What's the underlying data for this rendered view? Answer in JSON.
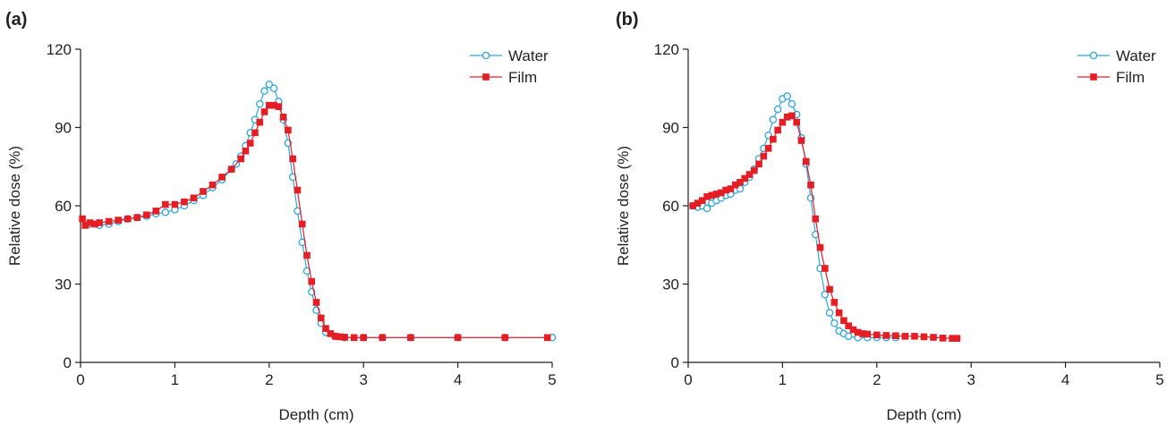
{
  "chart_data": [
    {
      "panel_label": "(a)",
      "type": "line",
      "xlabel": "Depth (cm)",
      "ylabel": "Relative dose  (%)",
      "xlim": [
        0,
        5
      ],
      "ylim": [
        0,
        120
      ],
      "xticks": [
        0,
        1,
        2,
        3,
        4,
        5
      ],
      "yticks": [
        0,
        30,
        60,
        90,
        120
      ],
      "grid": false,
      "legend": "top-right",
      "series": [
        {
          "name": "Water",
          "color": "#2aa7df",
          "marker": "open-circle",
          "x": [
            0.1,
            0.2,
            0.3,
            0.4,
            0.5,
            0.6,
            0.7,
            0.8,
            0.9,
            1.0,
            1.1,
            1.2,
            1.3,
            1.4,
            1.5,
            1.6,
            1.65,
            1.7,
            1.75,
            1.8,
            1.85,
            1.9,
            1.95,
            2.0,
            2.05,
            2.1,
            2.15,
            2.2,
            2.25,
            2.3,
            2.35,
            2.4,
            2.45,
            2.5,
            2.55,
            2.6,
            2.7,
            2.8,
            3.0,
            3.2,
            3.5,
            4.0,
            4.5,
            5.0
          ],
          "y": [
            53,
            52.5,
            53,
            54,
            55,
            55.5,
            56,
            57,
            57.5,
            58.5,
            60,
            62,
            64,
            67,
            70,
            74,
            76,
            79,
            83,
            88,
            93,
            99,
            104,
            106.5,
            105,
            100,
            93,
            84,
            71,
            58,
            46,
            35,
            27,
            20,
            15,
            11.5,
            10,
            9.5,
            9.5,
            9.5,
            9.5,
            9.5,
            9.5,
            9.5
          ]
        },
        {
          "name": "Film",
          "color": "#e31e24",
          "marker": "filled-square",
          "x": [
            0.02,
            0.05,
            0.1,
            0.15,
            0.2,
            0.3,
            0.4,
            0.5,
            0.6,
            0.7,
            0.8,
            0.9,
            1.0,
            1.1,
            1.2,
            1.3,
            1.4,
            1.5,
            1.6,
            1.7,
            1.75,
            1.8,
            1.85,
            1.9,
            1.95,
            2.0,
            2.05,
            2.1,
            2.15,
            2.2,
            2.25,
            2.3,
            2.35,
            2.4,
            2.45,
            2.5,
            2.55,
            2.6,
            2.65,
            2.7,
            2.75,
            2.8,
            2.9,
            3.0,
            3.2,
            3.5,
            4.0,
            4.5,
            4.95
          ],
          "y": [
            55,
            52.5,
            53.5,
            53,
            53.5,
            54,
            54.5,
            55,
            55.5,
            56.5,
            58,
            60.5,
            60.5,
            61.5,
            63,
            65.5,
            68,
            71,
            74,
            78,
            81,
            84,
            88,
            92,
            96,
            98.5,
            98.5,
            98,
            94,
            89,
            78,
            66,
            53,
            41,
            31,
            23,
            17,
            13,
            11,
            10,
            9.8,
            9.6,
            9.5,
            9.5,
            9.5,
            9.5,
            9.5,
            9.5,
            9.5
          ]
        }
      ]
    },
    {
      "panel_label": "(b)",
      "type": "line",
      "xlabel": "Depth (cm)",
      "ylabel": "Relative dose  (%)",
      "xlim": [
        0,
        5
      ],
      "ylim": [
        0,
        120
      ],
      "xticks": [
        0,
        1,
        2,
        3,
        4,
        5
      ],
      "yticks": [
        0,
        30,
        60,
        90,
        120
      ],
      "grid": false,
      "legend": "top-right",
      "series": [
        {
          "name": "Water",
          "color": "#2aa7df",
          "marker": "open-circle",
          "x": [
            0.05,
            0.1,
            0.15,
            0.2,
            0.25,
            0.3,
            0.35,
            0.4,
            0.45,
            0.5,
            0.55,
            0.6,
            0.65,
            0.7,
            0.75,
            0.8,
            0.85,
            0.9,
            0.95,
            1.0,
            1.05,
            1.1,
            1.15,
            1.2,
            1.25,
            1.3,
            1.35,
            1.4,
            1.45,
            1.5,
            1.55,
            1.6,
            1.65,
            1.7,
            1.8,
            1.9,
            2.0,
            2.1,
            2.2
          ],
          "y": [
            60,
            59.5,
            60,
            59,
            61,
            62,
            63,
            64,
            64.5,
            66,
            66.5,
            69,
            71,
            74,
            78,
            82,
            87,
            93,
            97,
            101,
            102,
            99,
            95,
            86,
            76,
            63,
            49,
            36,
            26,
            19,
            15,
            12,
            11,
            10,
            9.5,
            9.5,
            9.5,
            9.5,
            9.5
          ]
        },
        {
          "name": "Film",
          "color": "#e31e24",
          "marker": "filled-square",
          "x": [
            0.05,
            0.1,
            0.15,
            0.2,
            0.25,
            0.3,
            0.35,
            0.4,
            0.45,
            0.5,
            0.55,
            0.6,
            0.65,
            0.7,
            0.75,
            0.8,
            0.85,
            0.9,
            0.95,
            1.0,
            1.05,
            1.1,
            1.15,
            1.2,
            1.25,
            1.3,
            1.35,
            1.4,
            1.45,
            1.5,
            1.55,
            1.6,
            1.65,
            1.7,
            1.75,
            1.8,
            1.85,
            1.9,
            2.0,
            2.1,
            2.2,
            2.3,
            2.4,
            2.5,
            2.6,
            2.7,
            2.8,
            2.85
          ],
          "y": [
            60,
            61,
            62,
            63.5,
            64,
            64.5,
            65,
            66,
            66.5,
            68,
            69,
            70.5,
            72,
            73.5,
            76,
            79,
            82,
            85.5,
            89,
            92,
            94,
            94.5,
            92,
            85,
            77,
            68,
            55,
            44,
            36,
            28,
            23,
            19,
            16,
            14,
            12.5,
            11.5,
            11,
            10.8,
            10.5,
            10.3,
            10.2,
            10,
            10,
            9.8,
            9.6,
            9.3,
            9.2,
            9.2
          ]
        }
      ]
    }
  ]
}
